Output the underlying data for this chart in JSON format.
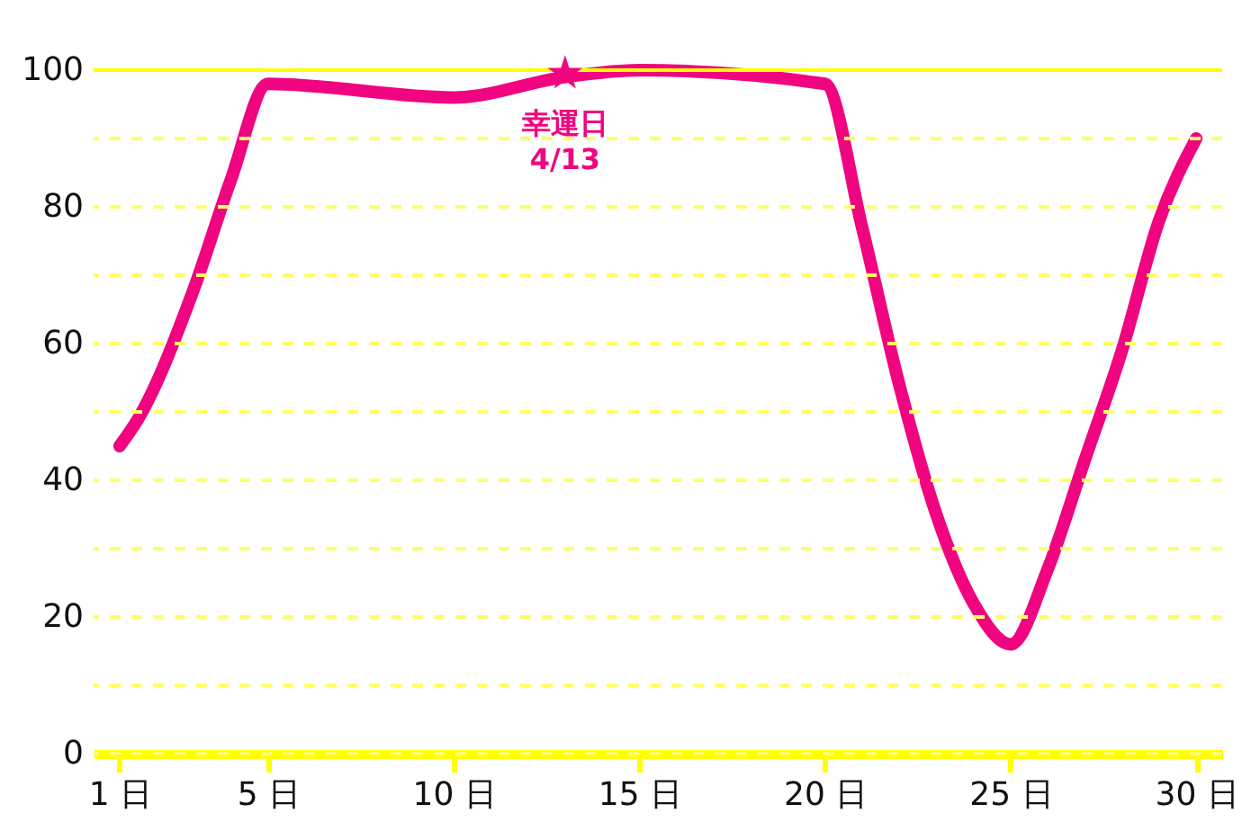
{
  "chart_data": {
    "type": "line",
    "xlim": [
      0.3,
      30.7
    ],
    "xticks": [
      {
        "value": 1,
        "label": "1 日"
      },
      {
        "value": 5,
        "label": "5 日"
      },
      {
        "value": 10,
        "label": "10 日"
      },
      {
        "value": 15,
        "label": "15 日"
      },
      {
        "value": 20,
        "label": "20 日"
      },
      {
        "value": 25,
        "label": "25 日"
      },
      {
        "value": 30,
        "label": "30 日"
      }
    ],
    "ylim": [
      0,
      100
    ],
    "yticks": [
      0,
      {
        "value": 10,
        "label": null
      },
      20,
      {
        "value": 30,
        "label": null
      },
      40,
      {
        "value": 50,
        "label": null
      },
      60,
      {
        "value": 70,
        "label": null
      },
      80,
      {
        "value": 90,
        "label": null
      },
      100
    ],
    "grid": "y",
    "series": [
      {
        "color": "#f0047f",
        "x": [
          1,
          1.5,
          3,
          4,
          5,
          10,
          13,
          15,
          20,
          21,
          22,
          23,
          24,
          25,
          26,
          27,
          28,
          29,
          30
        ],
        "values": [
          45,
          49,
          68,
          84,
          98,
          96,
          99,
          100,
          98,
          77,
          54,
          35,
          22,
          16,
          27,
          43,
          59,
          78,
          90
        ]
      },
      {
        "type": "scatter",
        "marker": "star",
        "color": "#f0047f",
        "x": [
          13
        ],
        "values": [
          99.5
        ]
      }
    ],
    "ref_lines": [
      {
        "axis": "y",
        "value": 100,
        "label": null,
        "color": "#ffff00"
      }
    ],
    "annotations": [
      {
        "text": "幸運日\n4/13",
        "x": 13,
        "y": 99.5
      }
    ]
  }
}
